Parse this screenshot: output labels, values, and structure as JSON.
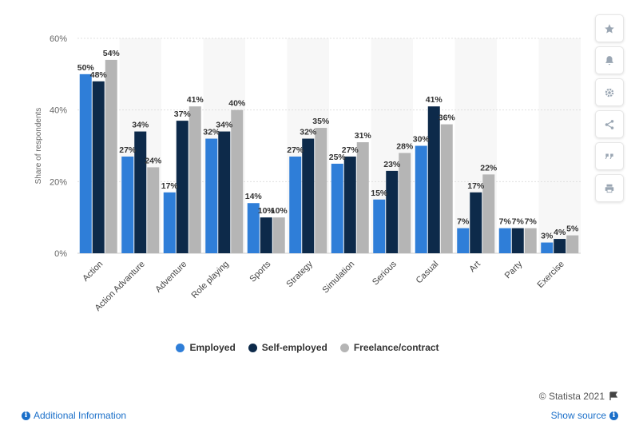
{
  "chart_data": {
    "type": "bar",
    "ylabel": "Share of respondents",
    "ylim": [
      0,
      60
    ],
    "yticks": [
      "0%",
      "20%",
      "40%",
      "60%"
    ],
    "grid": true,
    "legend_position": "bottom",
    "categories": [
      "Action",
      "Action Advanture",
      "Adventure",
      "Role playing",
      "Sports",
      "Strategy",
      "Simulation",
      "Serious",
      "Casual",
      "Art",
      "Party",
      "Exercise"
    ],
    "series": [
      {
        "name": "Employed",
        "color": "#2f7ed8",
        "values": [
          50,
          27,
          17,
          32,
          14,
          27,
          25,
          15,
          30,
          7,
          7,
          3
        ]
      },
      {
        "name": "Self-employed",
        "color": "#0d2a4a",
        "values": [
          48,
          34,
          37,
          34,
          10,
          32,
          27,
          23,
          41,
          17,
          7,
          4
        ]
      },
      {
        "name": "Freelance/contract",
        "color": "#b5b5b5",
        "values": [
          54,
          24,
          41,
          40,
          10,
          35,
          31,
          28,
          36,
          22,
          7,
          5
        ]
      }
    ],
    "value_suffix": "%"
  },
  "legend": {
    "items": [
      {
        "label": "Employed",
        "color": "#2f7ed8"
      },
      {
        "label": "Self-employed",
        "color": "#0d2a4a"
      },
      {
        "label": "Freelance/contract",
        "color": "#b5b5b5"
      }
    ]
  },
  "footer": {
    "credit": "© Statista 2021",
    "additional_info": "Additional Information",
    "show_source": "Show source"
  },
  "toolbar": {
    "icons": [
      "star-icon",
      "bell-icon",
      "gear-icon",
      "share-icon",
      "quote-icon",
      "print-icon"
    ]
  }
}
